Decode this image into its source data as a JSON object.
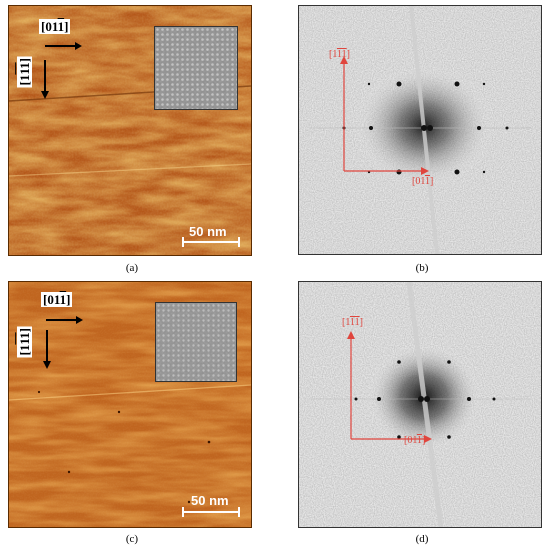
{
  "panels": [
    {
      "caption": "(a)",
      "dir_h": "[01",
      "dir_h_bar": "1",
      "dir_h_end": "]",
      "dir_v": "[1",
      "dir_v_bar": "11",
      "dir_v_end": "]",
      "scalebar": "50 nm"
    },
    {
      "caption": "(b)",
      "red_v": "[1",
      "red_v_bar": "11",
      "red_v_end": "]",
      "red_h": "[01",
      "red_h_bar": "1",
      "red_h_end": "]"
    },
    {
      "caption": "(c)",
      "dir_h": "[01",
      "dir_h_bar": "1",
      "dir_h_end": "]",
      "dir_v": "[1",
      "dir_v_bar": "11",
      "dir_v_end": "]",
      "scalebar": "50 nm"
    },
    {
      "caption": "(d)",
      "red_v": "[1",
      "red_v_bar": "11",
      "red_v_end": "]",
      "red_h": "[01",
      "red_h_bar": "1",
      "red_h_end": "]"
    }
  ],
  "colors": {
    "stm_orange": "#d9822b",
    "arrow_red": "#e0453d"
  }
}
